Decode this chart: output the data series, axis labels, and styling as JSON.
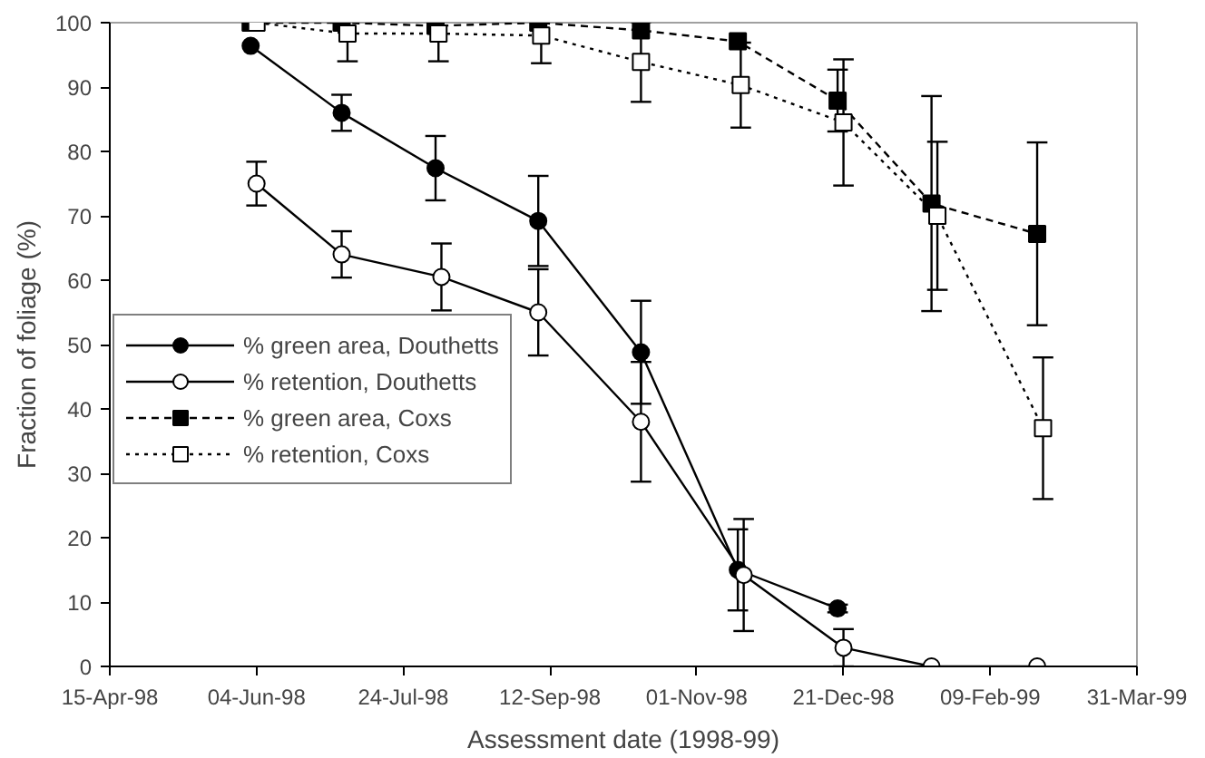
{
  "chart_data": {
    "type": "line",
    "xlabel": "Assessment date (1998-99)",
    "ylabel": "Fraction of foliage (%)",
    "x": [
      "1998-06-02",
      "1998-07-03",
      "1998-08-04",
      "1998-09-08",
      "1998-10-13",
      "1998-11-15",
      "1998-12-19",
      "1999-01-20",
      "1999-02-25"
    ],
    "xlim": [
      "1998-04-15",
      "1999-03-31"
    ],
    "xticks": [
      {
        "value": "1998-04-15",
        "label": "15-Apr-98"
      },
      {
        "value": "1998-06-04",
        "label": "04-Jun-98"
      },
      {
        "value": "1998-07-24",
        "label": "24-Jul-98"
      },
      {
        "value": "1998-09-12",
        "label": "12-Sep-98"
      },
      {
        "value": "1998-11-01",
        "label": "01-Nov-98"
      },
      {
        "value": "1998-12-21",
        "label": "21-Dec-98"
      },
      {
        "value": "1999-02-09",
        "label": "09-Feb-99"
      },
      {
        "value": "1999-03-31",
        "label": "31-Mar-99"
      }
    ],
    "ylim": [
      0,
      100
    ],
    "yticks": [
      0,
      10,
      20,
      30,
      40,
      50,
      60,
      70,
      80,
      90,
      100
    ],
    "grid": false,
    "legend": "bottom left",
    "series": [
      {
        "name": "% green area, Douthetts",
        "color": "#000000",
        "marker": "circle",
        "line_style": "solid",
        "values": [
          96.4,
          86,
          77.4,
          69.2,
          48.8,
          15,
          9,
          null,
          null
        ],
        "errors": [
          null,
          2.8,
          5,
          7,
          8,
          6.3,
          0.6,
          null,
          null
        ]
      },
      {
        "name": "% retention, Douthetts",
        "x": [
          "1998-06-04",
          "1998-07-03",
          "1998-08-06",
          "1998-09-08",
          "1998-10-13",
          "1998-11-17",
          "1998-12-21",
          "1999-01-20",
          "1999-02-25"
        ],
        "color": "#ffffff",
        "marker": "circle",
        "line_style": "solid",
        "values": [
          75,
          64,
          60.5,
          55,
          38,
          14.2,
          2.9,
          0,
          0
        ],
        "errors": [
          3.4,
          3.6,
          5.2,
          6.7,
          9.3,
          8.7,
          2.9,
          null,
          null
        ]
      },
      {
        "name": "% green area, Coxs",
        "color": "#000000",
        "marker": "square",
        "line_style": "dashed",
        "values": [
          100,
          100,
          99.5,
          100,
          98.8,
          97.1,
          87.9,
          71.9,
          67.2
        ],
        "errors": [
          null,
          null,
          null,
          null,
          null,
          null,
          4.8,
          16.7,
          14.2
        ]
      },
      {
        "name": "% retention, Coxs",
        "x": [
          "1998-06-04",
          "1998-07-05",
          "1998-08-05",
          "1998-09-09",
          "1998-10-13",
          "1998-11-16",
          "1998-12-21",
          "1999-01-22",
          "1999-02-27"
        ],
        "color": "#ffffff",
        "marker": "square",
        "line_style": "dotted",
        "values": [
          100,
          98.3,
          98.3,
          98,
          93.9,
          90.3,
          84.5,
          70,
          37
        ],
        "errors": [
          null,
          4.3,
          4.3,
          4.3,
          6.2,
          6.6,
          9.8,
          11.5,
          11
        ]
      }
    ]
  }
}
